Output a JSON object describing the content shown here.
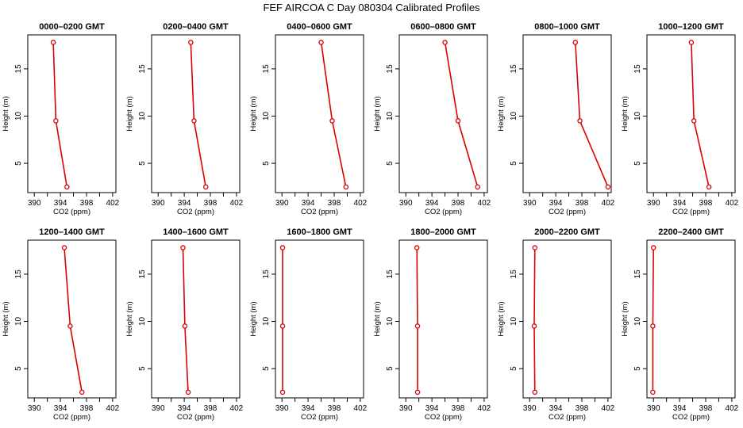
{
  "title": "FEF AIRCOA C  Day 080304  Calibrated Profiles",
  "colors": {
    "line": "#dd0000",
    "frame": "#000000"
  },
  "chart_data": {
    "type": "line",
    "shared": {
      "xlabel": "CO2 (ppm)",
      "ylabel": "Height (m)",
      "xlim": [
        389,
        402.5
      ],
      "ylim": [
        1.9,
        18.6
      ],
      "xticks": [
        390,
        394,
        398,
        402
      ],
      "xticks_minor": [
        392,
        396,
        400
      ],
      "yticks": [
        5,
        10,
        15
      ],
      "heights": [
        2.5,
        9.5,
        17.8
      ]
    },
    "panels": [
      {
        "title": "0000–0200 GMT",
        "co2": [
          395.0,
          393.3,
          392.9
        ]
      },
      {
        "title": "0200–0400 GMT",
        "co2": [
          397.3,
          395.5,
          395.0
        ]
      },
      {
        "title": "0400–0600 GMT",
        "co2": [
          399.8,
          397.7,
          396.0
        ]
      },
      {
        "title": "0600–0800 GMT",
        "co2": [
          401.0,
          398.0,
          396.0
        ]
      },
      {
        "title": "0800–1000 GMT",
        "co2": [
          402.0,
          397.7,
          397.0
        ]
      },
      {
        "title": "1000–1200 GMT",
        "co2": [
          398.5,
          396.2,
          395.8
        ]
      },
      {
        "title": "1200–1400 GMT",
        "co2": [
          397.3,
          395.5,
          394.6
        ]
      },
      {
        "title": "1400–1600 GMT",
        "co2": [
          394.6,
          394.1,
          393.8
        ]
      },
      {
        "title": "1600–1800 GMT",
        "co2": [
          390.1,
          390.1,
          390.1
        ]
      },
      {
        "title": "1800–2000 GMT",
        "co2": [
          391.8,
          391.8,
          391.7
        ]
      },
      {
        "title": "2000–2200 GMT",
        "co2": [
          390.8,
          390.7,
          390.8
        ]
      },
      {
        "title": "2200–2400 GMT",
        "co2": [
          389.9,
          389.9,
          390.0
        ]
      }
    ]
  }
}
